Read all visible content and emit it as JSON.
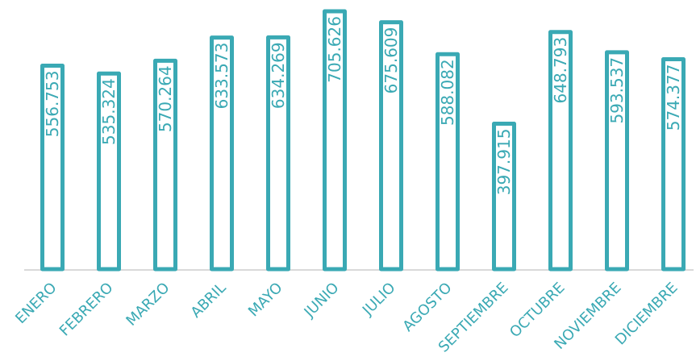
{
  "chart_data": {
    "type": "bar",
    "title": "",
    "xlabel": "",
    "ylabel": "",
    "categories": [
      "ENERO",
      "FEBRERO",
      "MARZO",
      "ABRIL",
      "MAYO",
      "JUNIO",
      "JULIO",
      "AGOSTO",
      "SEPTIEMBRE",
      "OCTUBRE",
      "NOVIEMBRE",
      "DICIEMBRE"
    ],
    "values": [
      556753,
      535324,
      570264,
      633573,
      634269,
      705626,
      675609,
      588082,
      397915,
      648793,
      593537,
      574377
    ],
    "value_labels": [
      "556.753",
      "535.324",
      "570.264",
      "633.573",
      "634.269",
      "705.626",
      "675.609",
      "588.082",
      "397.915",
      "648.793",
      "593.537",
      "574.377"
    ],
    "ylim": [
      0,
      705626
    ],
    "grid": false,
    "legend": "none",
    "colors": {
      "bar_stroke": "#3aa9b4",
      "bar_fill": "#ffffff",
      "value_text": "#3aa9b4",
      "category_text": "#3aa9b4",
      "baseline": "#d9d9d9"
    }
  }
}
